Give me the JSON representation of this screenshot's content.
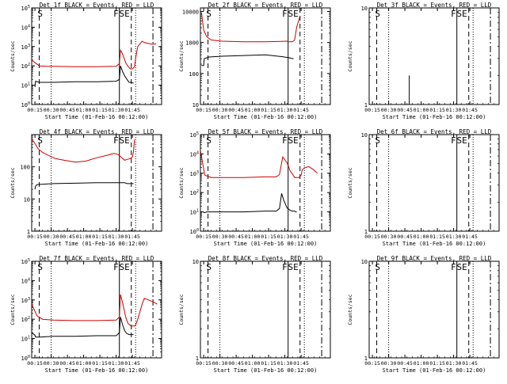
{
  "chart_data": [
    {
      "type": "line",
      "title": "Det 1f BLACK = Events, RED = LLD",
      "ylabel": "Counts/sec",
      "xlabel": "Start Time (01-Feb-16 00:12:00)",
      "yscale": "log",
      "ylim": [
        1,
        100000
      ],
      "y_ticks": [
        "10^0",
        "10^1",
        "10^2",
        "10^3",
        "10^4",
        "10^5"
      ],
      "x_ticks": [
        "00:15",
        "00:30",
        "00:45",
        "01:00",
        "01:15",
        "01:30",
        "01:45"
      ],
      "markers": [
        "S",
        "F",
        "SE"
      ],
      "series": [
        {
          "name": "LLD",
          "color": "#d00000",
          "x": [
            0,
            7,
            14,
            20,
            40,
            60,
            78,
            81,
            82,
            84,
            87,
            89,
            91,
            93,
            95,
            96,
            98,
            102,
            104,
            112,
            115
          ],
          "y": [
            200,
            100,
            95,
            95,
            90,
            90,
            95,
            130,
            650,
            400,
            140,
            95,
            70,
            70,
            90,
            250,
            1000,
            1900,
            1600,
            1300,
            1400
          ]
        },
        {
          "name": "Events",
          "color": "#000000",
          "x": [
            3,
            3.5,
            7,
            20,
            40,
            60,
            78,
            81,
            82,
            84,
            86,
            88,
            90,
            92,
            93,
            94
          ],
          "y": [
            8,
            16,
            14,
            14,
            15,
            15,
            16,
            20,
            100,
            50,
            30,
            20,
            14,
            14,
            13,
            13
          ]
        }
      ]
    },
    {
      "type": "line",
      "title": "Det 2f BLACK = Events, RED = LLD",
      "ylabel": "Counts/sec",
      "xlabel": "Start Time (01-Feb-16 00:12:00)",
      "yscale": "log",
      "ylim": [
        10,
        13000
      ],
      "y_ticks": [
        "10",
        "100",
        "1000",
        "10000"
      ],
      "x_ticks": [
        "00:15",
        "00:30",
        "00:45",
        "01:00",
        "01:15",
        "01:30",
        "01:45"
      ],
      "markers": [
        "S",
        "F",
        "SE"
      ],
      "series": [
        {
          "name": "LLD",
          "color": "#d00000",
          "x": [
            1,
            3,
            6,
            10,
            20,
            40,
            60,
            75,
            80,
            82,
            85,
            87,
            89,
            92
          ],
          "y": [
            9000,
            2500,
            1500,
            1200,
            1100,
            1050,
            1050,
            1080,
            1100,
            1050,
            1050,
            1200,
            3200,
            7000
          ]
        },
        {
          "name": "Events",
          "color": "#000000",
          "x": [
            1,
            3,
            3.5,
            8,
            20,
            40,
            60,
            75,
            80,
            82,
            84,
            86
          ],
          "y": [
            180,
            180,
            300,
            340,
            360,
            380,
            400,
            350,
            330,
            320,
            310,
            300
          ]
        }
      ]
    },
    {
      "type": "line",
      "title": "Det 3f BLACK = Events, RED = LLD",
      "ylabel": "Counts/sec",
      "xlabel": "Start Time (01-Feb-16 00:12:00)",
      "yscale": "log",
      "ylim": [
        1,
        10
      ],
      "y_ticks": [
        "1",
        "10"
      ],
      "x_ticks": [
        "00:15",
        "00:30",
        "00:45",
        "01:00",
        "01:15",
        "01:30",
        "01:45"
      ],
      "markers": [
        "S",
        "F",
        "SE"
      ],
      "series": [
        {
          "name": "Events",
          "color": "#000000",
          "x": [
            37,
            37
          ],
          "y": [
            1,
            2
          ]
        }
      ]
    },
    {
      "type": "line",
      "title": "Det 4f BLACK = Events, RED = LLD",
      "ylabel": "Counts/sec",
      "xlabel": "Start Time (01-Feb-16 00:12:00)",
      "yscale": "log",
      "ylim": [
        1,
        1000
      ],
      "y_ticks": [
        "1",
        "10",
        "100"
      ],
      "x_ticks": [
        "00:15",
        "00:30",
        "00:45",
        "01:00",
        "01:15",
        "01:30",
        "01:45"
      ],
      "markers": [
        "S",
        "F",
        "SE"
      ],
      "series": [
        {
          "name": "LLD",
          "color": "#d00000",
          "x": [
            0,
            2,
            6,
            10,
            16,
            22,
            30,
            40,
            50,
            60,
            70,
            76,
            80,
            84,
            86,
            88,
            91,
            93,
            94,
            95
          ],
          "y": [
            700,
            600,
            360,
            280,
            220,
            180,
            160,
            140,
            150,
            190,
            230,
            260,
            240,
            180,
            160,
            170,
            180,
            200,
            300,
            700
          ]
        },
        {
          "name": "Events",
          "color": "#000000",
          "x": [
            3,
            3.5,
            5,
            20,
            40,
            60,
            78,
            86,
            88,
            92,
            93,
            94
          ],
          "y": [
            20,
            25,
            28,
            30,
            31,
            32,
            32,
            32,
            30,
            30,
            30,
            30
          ]
        }
      ]
    },
    {
      "type": "line",
      "title": "Det 5f BLACK = Events, RED = LLD",
      "ylabel": "Counts/sec",
      "xlabel": "Start Time (01-Feb-16 00:12:00)",
      "yscale": "log",
      "ylim": [
        1,
        100000
      ],
      "y_ticks": [
        "10^0",
        "10^1",
        "10^2",
        "10^3",
        "10^4",
        "10^5"
      ],
      "x_ticks": [
        "00:15",
        "00:30",
        "00:45",
        "01:00",
        "01:15",
        "01:30",
        "01:45"
      ],
      "markers": [
        "S",
        "F",
        "SE"
      ],
      "series": [
        {
          "name": "LLD",
          "color": "#d00000",
          "x": [
            0,
            2,
            4,
            10,
            20,
            40,
            60,
            70,
            73,
            76,
            80,
            83,
            85,
            87,
            89,
            91,
            93,
            94,
            96,
            100,
            104,
            108
          ],
          "y": [
            15000,
            3500,
            800,
            600,
            600,
            600,
            650,
            650,
            850,
            7000,
            3500,
            1300,
            900,
            600,
            600,
            600,
            800,
            1500,
            1900,
            2200,
            1600,
            1000
          ]
        },
        {
          "name": "Events",
          "color": "#000000",
          "x": [
            3,
            3.5,
            6,
            20,
            40,
            60,
            70,
            73,
            75,
            77,
            80,
            83,
            85,
            87,
            88,
            89
          ],
          "y": [
            10,
            9,
            10,
            10,
            10,
            11,
            11,
            15,
            90,
            40,
            16,
            12,
            11,
            11,
            10,
            10
          ]
        }
      ]
    },
    {
      "type": "line",
      "title": "Det 6f BLACK = Events, RED = LLD",
      "ylabel": "Counts/sec",
      "xlabel": "Start Time (01-Feb-16 00:12:00)",
      "yscale": "log",
      "ylim": [
        1,
        10
      ],
      "y_ticks": [
        "1",
        "10"
      ],
      "x_ticks": [
        "00:15",
        "00:30",
        "00:45",
        "01:00",
        "01:15",
        "01:30",
        "01:45"
      ],
      "markers": [
        "S",
        "F",
        "SE"
      ],
      "series": []
    },
    {
      "type": "line",
      "title": "Det 7f BLACK = Events, RED = LLD",
      "ylabel": "Counts/sec",
      "xlabel": "Start Time (01-Feb-16 00:12:00)",
      "yscale": "log",
      "ylim": [
        1,
        100000
      ],
      "y_ticks": [
        "10^0",
        "10^1",
        "10^2",
        "10^3",
        "10^4",
        "10^5"
      ],
      "x_ticks": [
        "00:15",
        "00:30",
        "00:45",
        "01:00",
        "01:15",
        "01:30",
        "01:45"
      ],
      "markers": [
        "S",
        "F",
        "SE"
      ],
      "series": [
        {
          "name": "LLD",
          "color": "#d00000",
          "x": [
            0,
            5,
            10,
            20,
            40,
            60,
            78,
            81,
            82,
            84,
            87,
            89,
            92,
            95,
            96,
            98,
            102,
            104,
            108,
            112,
            116
          ],
          "y": [
            600,
            150,
            100,
            90,
            85,
            85,
            90,
            130,
            1900,
            700,
            120,
            60,
            45,
            45,
            50,
            100,
            600,
            1200,
            1000,
            800,
            600
          ]
        },
        {
          "name": "Events",
          "color": "#000000",
          "x": [
            0,
            3,
            3.5,
            7,
            20,
            40,
            60,
            78,
            81,
            82,
            84,
            86,
            88,
            90,
            92,
            94
          ],
          "y": [
            20,
            15,
            12,
            12,
            13,
            13,
            14,
            14,
            20,
            130,
            50,
            25,
            18,
            16,
            16,
            16
          ]
        }
      ]
    },
    {
      "type": "line",
      "title": "Det 8f BLACK = Events, RED = LLD",
      "ylabel": "Counts/sec",
      "xlabel": "Start Time (01-Feb-16 00:12:00)",
      "yscale": "log",
      "ylim": [
        1,
        10
      ],
      "y_ticks": [
        "1",
        "10"
      ],
      "x_ticks": [
        "00:15",
        "00:30",
        "00:45",
        "01:00",
        "01:15",
        "01:30",
        "01:45"
      ],
      "markers": [
        "S",
        "F",
        "SE"
      ],
      "series": []
    },
    {
      "type": "line",
      "title": "Det 9f BLACK = Events, RED = LLD",
      "ylabel": "Counts/sec",
      "xlabel": "Start Time (01-Feb-16 00:12:00)",
      "yscale": "log",
      "ylim": [
        1,
        10
      ],
      "y_ticks": [
        "1",
        "10"
      ],
      "x_ticks": [
        "00:15",
        "00:30",
        "00:45",
        "01:00",
        "01:15",
        "01:30",
        "01:45"
      ],
      "markers": [
        "S",
        "F",
        "SE"
      ],
      "series": []
    }
  ]
}
